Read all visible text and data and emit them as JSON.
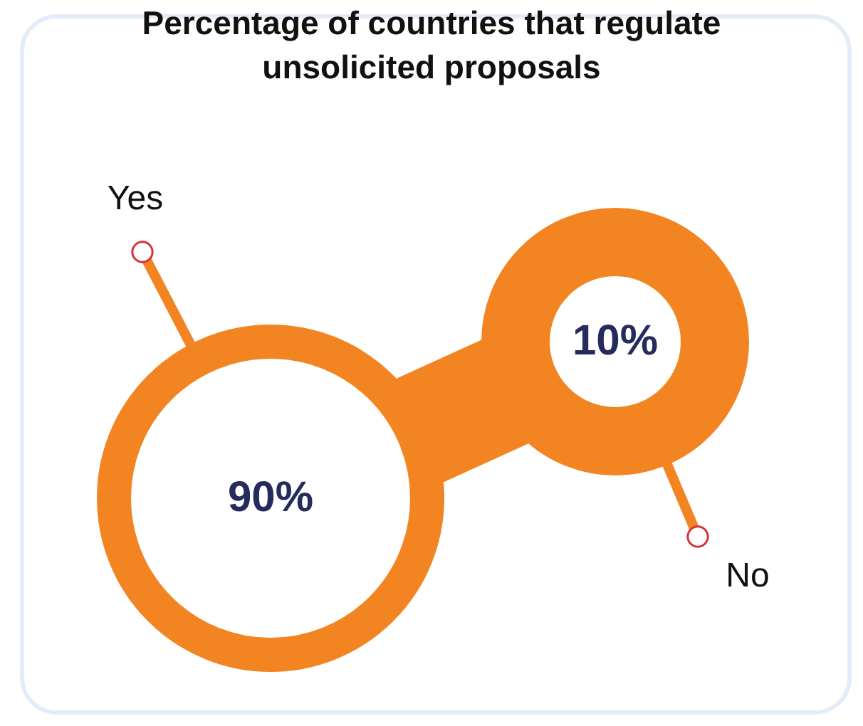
{
  "chart_data": {
    "type": "other",
    "title": "Percentage of countries that regulate unsolicited proposals",
    "categories": [
      "Yes",
      "No"
    ],
    "values": [
      90,
      10
    ],
    "value_labels": [
      "90%",
      "10%"
    ],
    "colors": [
      "#f28522",
      "#f28522"
    ]
  }
}
